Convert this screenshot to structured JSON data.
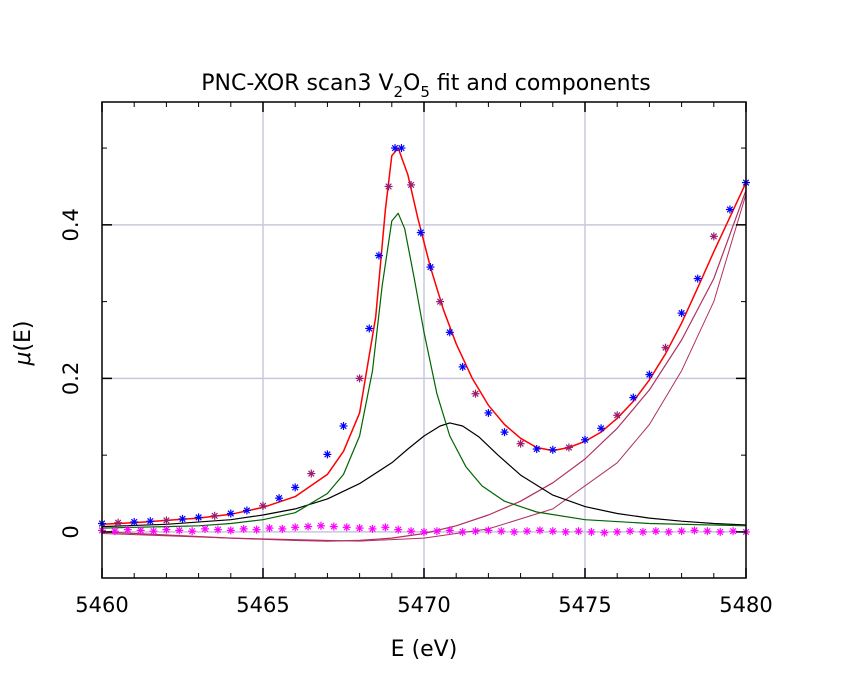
{
  "chart_data": {
    "type": "line",
    "title": {
      "prefix": "PNC-XOR scan3 V",
      "sub1": "2",
      "mid": "O",
      "sub2": "5",
      "suffix": " fit and components"
    },
    "xlabel": "E (eV)",
    "ylabel": {
      "greek": "μ",
      "rest": "(E)"
    },
    "xlim": [
      5460,
      5480
    ],
    "ylim": [
      -0.06,
      0.56
    ],
    "x_ticks": [
      5460,
      5465,
      5470,
      5475,
      5480
    ],
    "x_tick_labels": [
      "5460",
      "5465",
      "5470",
      "5475",
      "5480"
    ],
    "y_ticks": [
      0,
      0.2,
      0.4
    ],
    "y_tick_labels": [
      "0",
      "0.2",
      "0.4"
    ],
    "grid": true,
    "legend": "none",
    "colors": {
      "data": "#0000ff",
      "data_alt": "#9b1b6e",
      "fit": "#ff0000",
      "peak1": "#006400",
      "peak2": "#000000",
      "step": "#b03060",
      "residual": "#ff00ff",
      "grid": "#c8c8dc"
    },
    "data_points": {
      "x": [
        5460.0,
        5460.5,
        5461.0,
        5461.5,
        5462.0,
        5462.5,
        5463.0,
        5463.5,
        5464.0,
        5464.5,
        5465.0,
        5465.5,
        5466.0,
        5466.5,
        5467.0,
        5467.5,
        5468.0,
        5468.3,
        5468.6,
        5468.9,
        5469.1,
        5469.3,
        5469.6,
        5469.9,
        5470.2,
        5470.5,
        5470.8,
        5471.2,
        5471.6,
        5472.0,
        5472.5,
        5473.0,
        5473.5,
        5474.0,
        5474.5,
        5475.0,
        5475.5,
        5476.0,
        5476.5,
        5477.0,
        5477.5,
        5478.0,
        5478.5,
        5479.0,
        5479.5,
        5480.0
      ],
      "y": [
        0.011,
        0.012,
        0.013,
        0.014,
        0.015,
        0.017,
        0.019,
        0.021,
        0.024,
        0.028,
        0.034,
        0.044,
        0.058,
        0.076,
        0.101,
        0.138,
        0.2,
        0.265,
        0.36,
        0.45,
        0.5,
        0.5,
        0.452,
        0.39,
        0.345,
        0.3,
        0.26,
        0.215,
        0.18,
        0.155,
        0.13,
        0.115,
        0.108,
        0.107,
        0.11,
        0.12,
        0.135,
        0.152,
        0.175,
        0.205,
        0.24,
        0.285,
        0.33,
        0.385,
        0.42,
        0.455
      ]
    },
    "fit": {
      "x": [
        5460.0,
        5461.0,
        5462.0,
        5463.0,
        5464.0,
        5465.0,
        5466.0,
        5467.0,
        5467.5,
        5468.0,
        5468.5,
        5468.8,
        5469.0,
        5469.2,
        5469.5,
        5469.8,
        5470.2,
        5470.6,
        5471.0,
        5471.5,
        5472.0,
        5472.5,
        5473.0,
        5473.5,
        5474.0,
        5474.5,
        5475.0,
        5475.5,
        5476.0,
        5476.5,
        5477.0,
        5477.5,
        5478.0,
        5478.5,
        5479.0,
        5479.5,
        5480.0
      ],
      "y": [
        0.01,
        0.012,
        0.015,
        0.018,
        0.023,
        0.032,
        0.046,
        0.075,
        0.105,
        0.155,
        0.28,
        0.42,
        0.49,
        0.5,
        0.465,
        0.41,
        0.345,
        0.29,
        0.245,
        0.2,
        0.165,
        0.14,
        0.122,
        0.11,
        0.106,
        0.11,
        0.118,
        0.13,
        0.148,
        0.17,
        0.198,
        0.232,
        0.272,
        0.318,
        0.365,
        0.41,
        0.455
      ]
    },
    "peak1": {
      "x": [
        5460.0,
        5461.0,
        5462.0,
        5463.0,
        5464.0,
        5465.0,
        5466.0,
        5467.0,
        5467.5,
        5468.0,
        5468.4,
        5468.7,
        5469.0,
        5469.2,
        5469.4,
        5469.7,
        5470.0,
        5470.4,
        5470.8,
        5471.3,
        5471.8,
        5472.5,
        5473.5,
        5475.0,
        5477.0,
        5480.0
      ],
      "y": [
        0.005,
        0.006,
        0.007,
        0.008,
        0.011,
        0.016,
        0.025,
        0.05,
        0.075,
        0.125,
        0.21,
        0.32,
        0.405,
        0.415,
        0.395,
        0.33,
        0.26,
        0.18,
        0.125,
        0.085,
        0.06,
        0.04,
        0.026,
        0.016,
        0.011,
        0.008
      ]
    },
    "peak2": {
      "x": [
        5460.0,
        5462.0,
        5464.0,
        5465.0,
        5466.0,
        5467.0,
        5468.0,
        5469.0,
        5469.5,
        5470.0,
        5470.5,
        5470.8,
        5471.2,
        5471.7,
        5472.3,
        5473.0,
        5474.0,
        5475.0,
        5476.0,
        5477.0,
        5478.0,
        5479.0,
        5480.0
      ],
      "y": [
        0.007,
        0.01,
        0.016,
        0.022,
        0.03,
        0.043,
        0.063,
        0.09,
        0.108,
        0.125,
        0.138,
        0.142,
        0.138,
        0.124,
        0.1,
        0.074,
        0.048,
        0.033,
        0.024,
        0.018,
        0.014,
        0.011,
        0.009
      ]
    },
    "step": {
      "x": [
        5460.0,
        5462.0,
        5464.0,
        5466.0,
        5467.0,
        5468.0,
        5469.0,
        5470.0,
        5471.0,
        5472.0,
        5473.0,
        5474.0,
        5475.0,
        5476.0,
        5477.0,
        5478.0,
        5479.0,
        5480.0
      ],
      "y": [
        0.0,
        -0.004,
        -0.008,
        -0.011,
        -0.012,
        -0.011,
        -0.008,
        -0.002,
        0.008,
        0.022,
        0.04,
        0.064,
        0.095,
        0.135,
        0.185,
        0.25,
        0.33,
        0.445
      ]
    },
    "step_tail": {
      "x": [
        5460.0,
        5464.0,
        5468.0,
        5470.0,
        5472.0,
        5474.0,
        5476.0,
        5477.0,
        5478.0,
        5479.0,
        5480.0
      ],
      "y": [
        -0.002,
        -0.008,
        -0.012,
        -0.008,
        0.004,
        0.03,
        0.09,
        0.14,
        0.21,
        0.3,
        0.44
      ]
    },
    "residual": {
      "x": [
        5460.0,
        5460.4,
        5460.8,
        5461.2,
        5461.6,
        5462.0,
        5462.4,
        5462.8,
        5463.2,
        5463.6,
        5464.0,
        5464.4,
        5464.8,
        5465.2,
        5465.6,
        5466.0,
        5466.4,
        5466.8,
        5467.2,
        5467.6,
        5468.0,
        5468.4,
        5468.8,
        5469.2,
        5469.6,
        5470.0,
        5470.4,
        5470.8,
        5471.2,
        5471.6,
        5472.0,
        5472.4,
        5472.8,
        5473.2,
        5473.6,
        5474.0,
        5474.4,
        5474.8,
        5475.2,
        5475.6,
        5476.0,
        5476.4,
        5476.8,
        5477.2,
        5477.6,
        5478.0,
        5478.4,
        5478.8,
        5479.2,
        5479.6,
        5480.0
      ],
      "y": [
        0.002,
        0.001,
        0.003,
        0.002,
        0.001,
        0.003,
        0.002,
        0.001,
        0.004,
        0.003,
        0.002,
        0.004,
        0.003,
        0.005,
        0.004,
        0.006,
        0.007,
        0.008,
        0.007,
        0.006,
        0.005,
        0.004,
        0.006,
        0.003,
        0.001,
        0.0,
        0.001,
        0.002,
        0.0,
        0.001,
        0.002,
        0.001,
        0.0,
        0.001,
        0.002,
        0.001,
        0.0,
        0.001,
        0.0,
        -0.001,
        0.0,
        0.001,
        0.0,
        0.001,
        0.0,
        0.001,
        0.002,
        0.001,
        0.0,
        0.001,
        0.0
      ]
    }
  }
}
